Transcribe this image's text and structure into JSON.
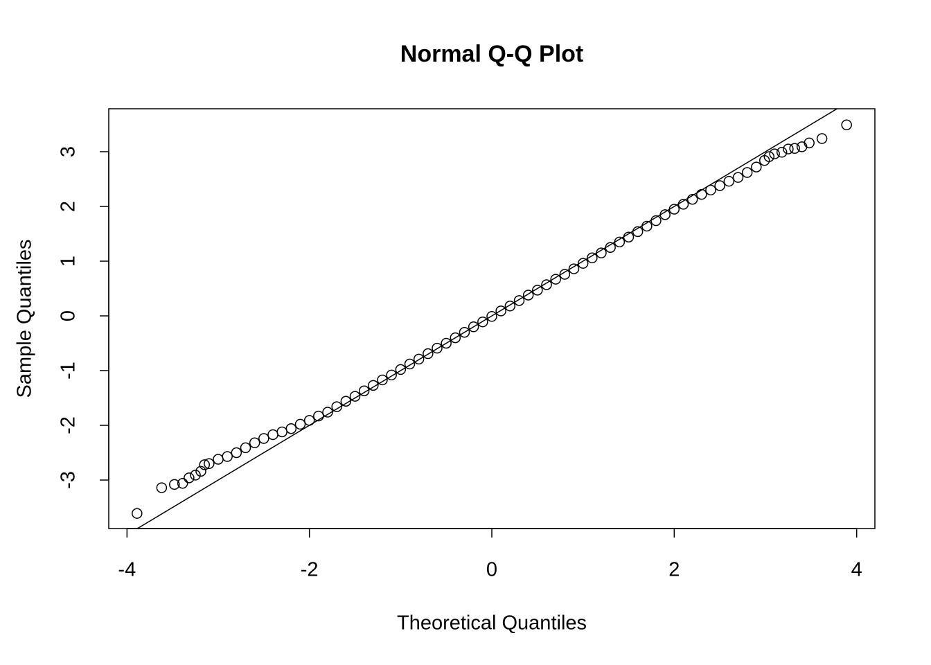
{
  "chart_data": {
    "type": "scatter",
    "title": "Normal Q-Q Plot",
    "x_label": "Theoretical Quantiles",
    "y_label": "Sample Quantiles",
    "x": [
      -3.89,
      -3.62,
      -3.48,
      -3.39,
      -3.32,
      -3.25,
      -3.19,
      -3.15,
      -3.1,
      -3.0,
      -2.9,
      -2.8,
      -2.7,
      -2.6,
      -2.5,
      -2.4,
      -2.3,
      -2.2,
      -2.1,
      -2.0,
      -1.9,
      -1.8,
      -1.7,
      -1.6,
      -1.5,
      -1.4,
      -1.3,
      -1.2,
      -1.1,
      -1.0,
      -0.9,
      -0.8,
      -0.7,
      -0.6,
      -0.5,
      -0.4,
      -0.3,
      -0.2,
      -0.1,
      0,
      0.1,
      0.2,
      0.3,
      0.4,
      0.5,
      0.6,
      0.7,
      0.8,
      0.9,
      1.0,
      1.1,
      1.2,
      1.3,
      1.4,
      1.5,
      1.6,
      1.7,
      1.8,
      1.9,
      2.0,
      2.1,
      2.2,
      2.3,
      2.4,
      2.5,
      2.6,
      2.7,
      2.8,
      2.9,
      2.99,
      3.04,
      3.1,
      3.18,
      3.25,
      3.32,
      3.4,
      3.48,
      3.62,
      3.89
    ],
    "values": [
      -3.61,
      -3.14,
      -3.08,
      -3.06,
      -2.96,
      -2.91,
      -2.84,
      -2.72,
      -2.7,
      -2.62,
      -2.57,
      -2.5,
      -2.41,
      -2.32,
      -2.24,
      -2.17,
      -2.12,
      -2.06,
      -1.98,
      -1.91,
      -1.83,
      -1.76,
      -1.66,
      -1.56,
      -1.47,
      -1.37,
      -1.27,
      -1.17,
      -1.08,
      -0.98,
      -0.88,
      -0.79,
      -0.69,
      -0.59,
      -0.5,
      -0.4,
      -0.3,
      -0.2,
      -0.11,
      -0.01,
      0.09,
      0.18,
      0.28,
      0.38,
      0.47,
      0.57,
      0.67,
      0.76,
      0.86,
      0.96,
      1.06,
      1.15,
      1.25,
      1.35,
      1.44,
      1.54,
      1.64,
      1.74,
      1.85,
      1.95,
      2.04,
      2.13,
      2.22,
      2.3,
      2.38,
      2.46,
      2.53,
      2.62,
      2.72,
      2.84,
      2.91,
      2.96,
      2.99,
      3.05,
      3.06,
      3.09,
      3.16,
      3.24,
      3.49
    ],
    "color": "#000000",
    "reference_line": {
      "intercept": 0,
      "slope": 1
    },
    "xlim": [
      -4.2,
      4.2
    ],
    "ylim": [
      -3.886,
      3.785
    ],
    "xticks": [
      -4,
      -2,
      0,
      2,
      4
    ],
    "yticks": [
      -3,
      -2,
      -1,
      0,
      1,
      2,
      3
    ],
    "grid": false
  }
}
